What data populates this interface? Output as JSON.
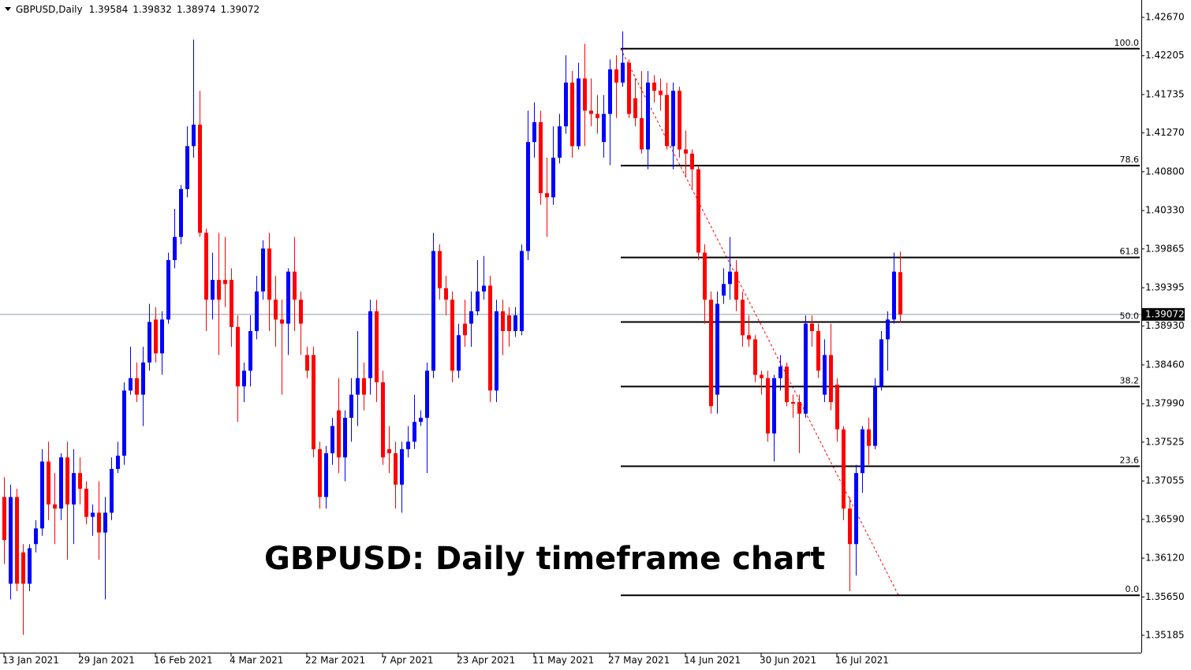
{
  "chart_data": {
    "type": "candlestick",
    "symbol": "GBPUSD,Daily",
    "annotation": "GBPUSD: Daily timeframe chart",
    "up_color": "#0000ff",
    "down_color": "#ff0000",
    "categories": [
      "13 Jan 2021",
      null,
      null,
      null,
      null,
      null,
      null,
      null,
      null,
      null,
      null,
      null,
      "29 Jan 2021",
      null,
      null,
      null,
      null,
      null,
      null,
      null,
      null,
      null,
      null,
      null,
      "16 Feb 2021",
      null,
      null,
      null,
      null,
      null,
      null,
      null,
      null,
      null,
      null,
      null,
      "4 Mar 2021",
      null,
      null,
      null,
      null,
      null,
      null,
      null,
      null,
      null,
      null,
      null,
      "22 Mar 2021",
      null,
      null,
      null,
      null,
      null,
      null,
      null,
      null,
      null,
      null,
      null,
      "7 Apr 2021",
      null,
      null,
      null,
      null,
      null,
      null,
      null,
      null,
      null,
      null,
      null,
      "23 Apr 2021",
      null,
      null,
      null,
      null,
      null,
      null,
      null,
      null,
      null,
      null,
      null,
      "11 May 2021",
      null,
      null,
      null,
      null,
      null,
      null,
      null,
      null,
      null,
      null,
      null,
      "27 May 2021",
      null,
      null,
      null,
      null,
      null,
      null,
      null,
      null,
      null,
      null,
      null,
      "14 Jun 2021",
      null,
      null,
      null,
      null,
      null,
      null,
      null,
      null,
      null,
      null,
      null,
      "30 Jun 2021",
      null,
      null,
      null,
      null,
      null,
      null,
      null,
      null,
      null,
      null,
      null,
      "16 Jul 2021",
      null,
      null,
      null,
      null,
      null,
      null,
      null,
      null,
      null,
      null
    ],
    "ohlc": [
      [
        1.3686,
        1.371,
        1.3605,
        1.3634
      ],
      [
        1.3581,
        1.3701,
        1.3562,
        1.3686
      ],
      [
        1.3686,
        1.3696,
        1.3572,
        1.3581
      ],
      [
        1.3619,
        1.3629,
        1.3519,
        1.3581
      ],
      [
        1.3581,
        1.3629,
        1.3572,
        1.3624
      ],
      [
        1.3629,
        1.3658,
        1.3619,
        1.3648
      ],
      [
        1.3648,
        1.3744,
        1.3639,
        1.3729
      ],
      [
        1.3729,
        1.3753,
        1.3658,
        1.3677
      ],
      [
        1.3677,
        1.3715,
        1.3629,
        1.3672
      ],
      [
        1.3672,
        1.3739,
        1.3658,
        1.3734
      ],
      [
        1.3734,
        1.3753,
        1.361,
        1.3677
      ],
      [
        1.3677,
        1.3744,
        1.3629,
        1.3715
      ],
      [
        1.3715,
        1.3734,
        1.3677,
        1.3696
      ],
      [
        1.3696,
        1.3705,
        1.3653,
        1.3662
      ],
      [
        1.3662,
        1.3677,
        1.3639,
        1.3667
      ],
      [
        1.3667,
        1.3705,
        1.361,
        1.3643
      ],
      [
        1.3643,
        1.3686,
        1.3562,
        1.3667
      ],
      [
        1.3667,
        1.3734,
        1.3658,
        1.372
      ],
      [
        1.372,
        1.3753,
        1.3715,
        1.3736
      ],
      [
        1.3736,
        1.3825,
        1.3725,
        1.3815
      ],
      [
        1.3815,
        1.3868,
        1.381,
        1.383
      ],
      [
        1.383,
        1.3849,
        1.3801,
        1.381
      ],
      [
        1.381,
        1.3868,
        1.3772,
        1.3849
      ],
      [
        1.3849,
        1.392,
        1.3839,
        1.3898
      ],
      [
        1.3901,
        1.3916,
        1.3849,
        1.386
      ],
      [
        1.386,
        1.3911,
        1.3834,
        1.3901
      ],
      [
        1.3901,
        1.3982,
        1.3896,
        1.3973
      ],
      [
        1.3973,
        1.4035,
        1.3963,
        1.4001
      ],
      [
        1.4001,
        1.4064,
        1.3992,
        1.4059
      ],
      [
        1.4059,
        1.4135,
        1.4049,
        1.4111
      ],
      [
        1.4111,
        1.424,
        1.4097,
        1.4137
      ],
      [
        1.4137,
        1.4178,
        1.4001,
        1.4006
      ],
      [
        1.4006,
        1.4011,
        1.3887,
        1.3925
      ],
      [
        1.3925,
        1.3982,
        1.3901,
        1.3949
      ],
      [
        1.3949,
        1.4006,
        1.3858,
        1.3925
      ],
      [
        1.3949,
        1.4001,
        1.3916,
        1.3944
      ],
      [
        1.3949,
        1.3963,
        1.3868,
        1.3892
      ],
      [
        1.3892,
        1.3906,
        1.3777,
        1.382
      ],
      [
        1.382,
        1.3849,
        1.3801,
        1.3839
      ],
      [
        1.3839,
        1.3906,
        1.382,
        1.3887
      ],
      [
        1.3887,
        1.3954,
        1.3877,
        1.3935
      ],
      [
        1.3935,
        1.3997,
        1.3925,
        1.3987
      ],
      [
        1.3987,
        1.4006,
        1.3887,
        1.3925
      ],
      [
        1.3925,
        1.3954,
        1.3868,
        1.3901
      ],
      [
        1.3901,
        1.3925,
        1.381,
        1.3896
      ],
      [
        1.3896,
        1.3963,
        1.3858,
        1.3959
      ],
      [
        1.3959,
        1.4001,
        1.3887,
        1.3925
      ],
      [
        1.3925,
        1.3935,
        1.3858,
        1.3896
      ],
      [
        1.3858,
        1.3868,
        1.383,
        1.3839
      ],
      [
        1.3858,
        1.3868,
        1.3734,
        1.3744
      ],
      [
        1.3744,
        1.3753,
        1.3672,
        1.3686
      ],
      [
        1.3686,
        1.3748,
        1.3672,
        1.3739
      ],
      [
        1.3739,
        1.3782,
        1.3725,
        1.3772
      ],
      [
        1.3791,
        1.383,
        1.3715,
        1.3734
      ],
      [
        1.3734,
        1.3791,
        1.3705,
        1.3782
      ],
      [
        1.3782,
        1.383,
        1.3753,
        1.381
      ],
      [
        1.381,
        1.3887,
        1.3772,
        1.383
      ],
      [
        1.383,
        1.3849,
        1.3791,
        1.381
      ],
      [
        1.383,
        1.3925,
        1.381,
        1.3911
      ],
      [
        1.3911,
        1.3925,
        1.3801,
        1.3825
      ],
      [
        1.3825,
        1.3839,
        1.3725,
        1.3734
      ],
      [
        1.3744,
        1.3772,
        1.3715,
        1.3739
      ],
      [
        1.3739,
        1.3753,
        1.3672,
        1.3701
      ],
      [
        1.3701,
        1.3753,
        1.3667,
        1.3744
      ],
      [
        1.3744,
        1.3772,
        1.3734,
        1.3753
      ],
      [
        1.3753,
        1.381,
        1.3744,
        1.3777
      ],
      [
        1.3777,
        1.3791,
        1.3772,
        1.3782
      ],
      [
        1.3782,
        1.3849,
        1.3715,
        1.3839
      ],
      [
        1.3839,
        1.4006,
        1.383,
        1.3984
      ],
      [
        1.3984,
        1.3992,
        1.3925,
        1.3939
      ],
      [
        1.3939,
        1.3954,
        1.3906,
        1.3925
      ],
      [
        1.3925,
        1.3935,
        1.3825,
        1.3839
      ],
      [
        1.3839,
        1.3896,
        1.383,
        1.3882
      ],
      [
        1.3896,
        1.3925,
        1.3868,
        1.3882
      ],
      [
        1.3896,
        1.3935,
        1.3868,
        1.3911
      ],
      [
        1.3911,
        1.3973,
        1.3906,
        1.3935
      ],
      [
        1.3935,
        1.3978,
        1.3925,
        1.3942
      ],
      [
        1.3942,
        1.3954,
        1.3801,
        1.3815
      ],
      [
        1.3815,
        1.3925,
        1.3801,
        1.3911
      ],
      [
        1.3911,
        1.3925,
        1.3858,
        1.3887
      ],
      [
        1.3906,
        1.3916,
        1.3868,
        1.3887
      ],
      [
        1.3887,
        1.3916,
        1.388,
        1.3906
      ],
      [
        1.3887,
        1.3992,
        1.3882,
        1.3984
      ],
      [
        1.3984,
        1.4154,
        1.3973,
        1.4116
      ],
      [
        1.4116,
        1.4164,
        1.4097,
        1.414
      ],
      [
        1.414,
        1.4154,
        1.404,
        1.4054
      ],
      [
        1.4054,
        1.4097,
        1.4001,
        1.4049
      ],
      [
        1.4049,
        1.4135,
        1.404,
        1.4097
      ],
      [
        1.4097,
        1.415,
        1.409,
        1.4135
      ],
      [
        1.4135,
        1.4221,
        1.4126,
        1.4188
      ],
      [
        1.4188,
        1.4202,
        1.4097,
        1.4111
      ],
      [
        1.4111,
        1.4212,
        1.4107,
        1.4193
      ],
      [
        1.4193,
        1.4235,
        1.4111,
        1.4154
      ],
      [
        1.4154,
        1.4193,
        1.4135,
        1.415
      ],
      [
        1.415,
        1.4173,
        1.4126,
        1.4145
      ],
      [
        1.4116,
        1.4173,
        1.4097,
        1.415
      ],
      [
        1.415,
        1.4216,
        1.4088,
        1.4204
      ],
      [
        1.4204,
        1.4221,
        1.4145,
        1.4188
      ],
      [
        1.4188,
        1.425,
        1.4183,
        1.4212
      ],
      [
        1.4212,
        1.4216,
        1.4145,
        1.415
      ],
      [
        1.4169,
        1.4193,
        1.4135,
        1.4145
      ],
      [
        1.4145,
        1.4202,
        1.4102,
        1.4107
      ],
      [
        1.4107,
        1.4202,
        1.4083,
        1.4188
      ],
      [
        1.4188,
        1.4197,
        1.4164,
        1.4178
      ],
      [
        1.4178,
        1.4193,
        1.4154,
        1.4173
      ],
      [
        1.4173,
        1.4188,
        1.4107,
        1.4111
      ],
      [
        1.4111,
        1.4188,
        1.4083,
        1.4178
      ],
      [
        1.4178,
        1.4183,
        1.4097,
        1.4107
      ],
      [
        1.4107,
        1.413,
        1.4073,
        1.4102
      ],
      [
        1.4102,
        1.4107,
        1.4059,
        1.4083
      ],
      [
        1.4083,
        1.4087,
        1.3973,
        1.3982
      ],
      [
        1.3982,
        1.3992,
        1.3896,
        1.3925
      ],
      [
        1.3925,
        1.3935,
        1.3787,
        1.3796
      ],
      [
        1.381,
        1.3935,
        1.3787,
        1.392
      ],
      [
        1.393,
        1.3963,
        1.392,
        1.3944
      ],
      [
        1.3944,
        1.4001,
        1.3925,
        1.3959
      ],
      [
        1.3959,
        1.3973,
        1.3911,
        1.3925
      ],
      [
        1.3925,
        1.3935,
        1.3868,
        1.3882
      ],
      [
        1.3882,
        1.3906,
        1.3868,
        1.3877
      ],
      [
        1.3877,
        1.3882,
        1.3825,
        1.3834
      ],
      [
        1.3834,
        1.3839,
        1.381,
        1.383
      ],
      [
        1.383,
        1.3839,
        1.3753,
        1.3763
      ],
      [
        1.3763,
        1.3834,
        1.3729,
        1.383
      ],
      [
        1.383,
        1.3858,
        1.3815,
        1.3844
      ],
      [
        1.3844,
        1.3849,
        1.3796,
        1.3801
      ],
      [
        1.3801,
        1.381,
        1.3782,
        1.3799
      ],
      [
        1.3801,
        1.381,
        1.3739,
        1.3787
      ],
      [
        1.3787,
        1.3906,
        1.3782,
        1.3896
      ],
      [
        1.3896,
        1.3906,
        1.3868,
        1.3887
      ],
      [
        1.3887,
        1.3896,
        1.383,
        1.3839
      ],
      [
        1.381,
        1.3877,
        1.3801,
        1.3858
      ],
      [
        1.3858,
        1.3896,
        1.3791,
        1.3801
      ],
      [
        1.3822,
        1.383,
        1.3753,
        1.3768
      ],
      [
        1.3768,
        1.3772,
        1.3658,
        1.3672
      ],
      [
        1.3672,
        1.3686,
        1.3572,
        1.3629
      ],
      [
        1.3629,
        1.3725,
        1.3591,
        1.3715
      ],
      [
        1.3715,
        1.3772,
        1.3691,
        1.3768
      ],
      [
        1.3768,
        1.3782,
        1.3725,
        1.3748
      ],
      [
        1.3748,
        1.383,
        1.3744,
        1.382
      ],
      [
        1.382,
        1.3887,
        1.3815,
        1.3877
      ],
      [
        1.3877,
        1.3911,
        1.3839,
        1.3901
      ],
      [
        1.3901,
        1.3982,
        1.3896,
        1.3959
      ],
      [
        1.39584,
        1.39832,
        1.38974,
        1.39072
      ]
    ],
    "ylim": [
      1.34975,
      1.4288
    ],
    "yticks": [
      {
        "value": 1.4267,
        "label": "1.42670"
      },
      1.42205,
      1.41735,
      {
        "value": 1.4127,
        "label": "1.41270"
      },
      {
        "value": 1.408,
        "label": "1.40800"
      },
      {
        "value": 1.4033,
        "label": "1.40330"
      },
      1.39865,
      1.39395,
      {
        "value": 1.3893,
        "label": "1.38930"
      },
      {
        "value": 1.3846,
        "label": "1.38460"
      },
      {
        "value": 1.3799,
        "label": "1.37990"
      },
      1.37525,
      1.37055,
      {
        "value": 1.3659,
        "label": "1.36590"
      },
      {
        "value": 1.3612,
        "label": "1.36120"
      },
      {
        "value": 1.3565,
        "label": "1.35650"
      },
      1.35185
    ],
    "fibonacci": {
      "high": 1.4229,
      "low": 1.3567,
      "levels": [
        {
          "value": 100,
          "label": "100.0"
        },
        78.6,
        61.8,
        {
          "value": 50,
          "label": "50.0"
        },
        38.2,
        23.6,
        {
          "value": 0,
          "label": "0.0"
        }
      ]
    }
  }
}
